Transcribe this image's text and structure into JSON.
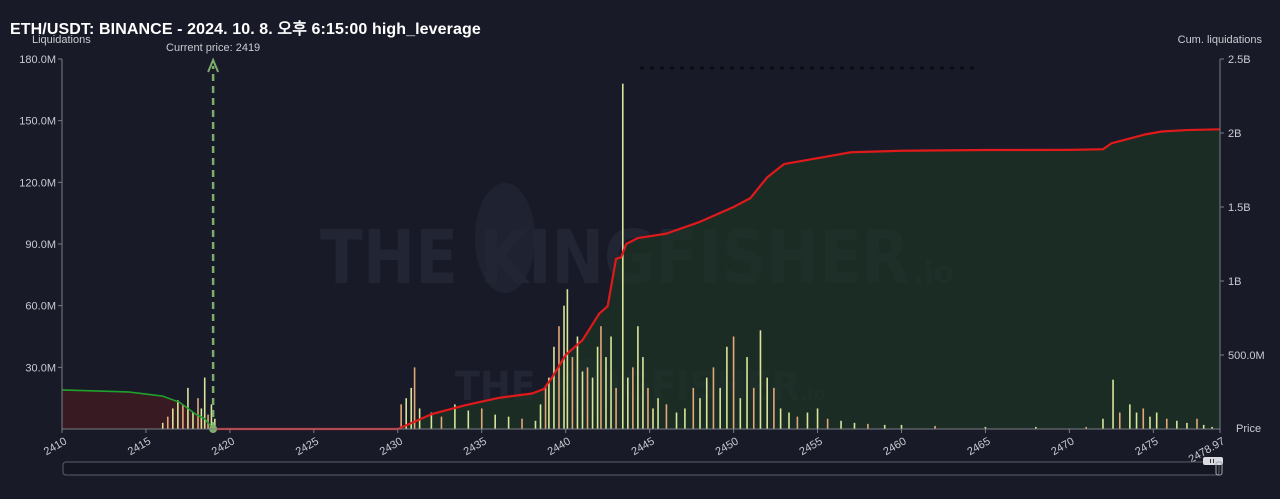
{
  "title": "ETH/USDT: BINANCE - 2024. 10. 8. 오후 6:15:00 high_leverage",
  "watermark": {
    "text": "THE KINGFISHER",
    "suffix": ".io"
  },
  "colors": {
    "background": "#181a27",
    "bars": "#d8e59a",
    "bars_orange": "#e2a878",
    "cum_line": "#e01a1a",
    "long_line": "#1fa22b",
    "long_fill": "#3a1a22",
    "cum_fill": "#1c3324",
    "current_price": "#7cae6a"
  },
  "chart_data": {
    "type": "bar",
    "title": "ETH/USDT: BINANCE - 2024. 10. 8. 오후 6:15:00 high_leverage",
    "xlabel": "Price",
    "ylabel": "Liquidations",
    "y2label": "Cum. liquidations",
    "xlim": [
      2410,
      2478.97
    ],
    "ylim": [
      0,
      180000000
    ],
    "y2lim": [
      0,
      2500000000
    ],
    "x_ticks": [
      "2410",
      "2415",
      "2420",
      "2425",
      "2430",
      "2435",
      "2440",
      "2445",
      "2450",
      "2455",
      "2460",
      "2465",
      "2470",
      "2475",
      "2478.97"
    ],
    "y_ticks": [
      "30.0M",
      "60.0M",
      "90.0M",
      "120.0M",
      "150.0M",
      "180.0M"
    ],
    "y2_ticks": [
      "500.0M",
      "1B",
      "1.5B",
      "2B",
      "2.5B"
    ],
    "current_price": {
      "label": "Current price: 2419",
      "value": 2419
    },
    "series": [
      {
        "kind": "bars",
        "points": [
          [
            2416.0,
            3.0
          ],
          [
            2416.3,
            6.0
          ],
          [
            2416.6,
            10.0
          ],
          [
            2416.9,
            14.0
          ],
          [
            2417.2,
            12.0
          ],
          [
            2417.5,
            20.0
          ],
          [
            2417.8,
            8.0
          ],
          [
            2418.1,
            15.0
          ],
          [
            2418.3,
            10.0
          ],
          [
            2418.5,
            25.0
          ],
          [
            2418.7,
            7.0
          ],
          [
            2418.9,
            12.0
          ],
          [
            2419.1,
            5.0
          ],
          [
            2430.2,
            12.0
          ],
          [
            2430.5,
            15.0
          ],
          [
            2430.8,
            20.0
          ],
          [
            2431.0,
            30.0
          ],
          [
            2431.3,
            10.0
          ],
          [
            2432.0,
            8.0
          ],
          [
            2432.6,
            6.0
          ],
          [
            2433.4,
            12.0
          ],
          [
            2434.2,
            9.0
          ],
          [
            2435.0,
            10.0
          ],
          [
            2435.8,
            7.0
          ],
          [
            2436.6,
            6.0
          ],
          [
            2437.4,
            5.0
          ],
          [
            2438.2,
            4.0
          ],
          [
            2438.5,
            12.0
          ],
          [
            2438.8,
            20.0
          ],
          [
            2439.0,
            25.0
          ],
          [
            2439.3,
            40.0
          ],
          [
            2439.6,
            50.0
          ],
          [
            2439.9,
            60.0
          ],
          [
            2440.1,
            68.0
          ],
          [
            2440.4,
            35.0
          ],
          [
            2440.7,
            45.0
          ],
          [
            2441.0,
            28.0
          ],
          [
            2441.3,
            30.0
          ],
          [
            2441.6,
            25.0
          ],
          [
            2441.9,
            40.0
          ],
          [
            2442.1,
            50.0
          ],
          [
            2442.4,
            35.0
          ],
          [
            2442.7,
            45.0
          ],
          [
            2443.0,
            20.0
          ],
          [
            2443.4,
            168.0
          ],
          [
            2443.7,
            25.0
          ],
          [
            2444.0,
            30.0
          ],
          [
            2444.3,
            50.0
          ],
          [
            2444.6,
            35.0
          ],
          [
            2444.9,
            20.0
          ],
          [
            2445.2,
            10.0
          ],
          [
            2445.5,
            15.0
          ],
          [
            2446.0,
            12.0
          ],
          [
            2446.6,
            8.0
          ],
          [
            2447.1,
            10.0
          ],
          [
            2447.6,
            20.0
          ],
          [
            2448.0,
            15.0
          ],
          [
            2448.4,
            25.0
          ],
          [
            2448.8,
            30.0
          ],
          [
            2449.2,
            20.0
          ],
          [
            2449.6,
            40.0
          ],
          [
            2450.0,
            45.0
          ],
          [
            2450.4,
            15.0
          ],
          [
            2450.8,
            35.0
          ],
          [
            2451.2,
            20.0
          ],
          [
            2451.6,
            48.0
          ],
          [
            2452.0,
            25.0
          ],
          [
            2452.4,
            20.0
          ],
          [
            2452.8,
            10.0
          ],
          [
            2453.3,
            8.0
          ],
          [
            2453.8,
            6.0
          ],
          [
            2454.4,
            8.0
          ],
          [
            2455.0,
            10.0
          ],
          [
            2455.6,
            5.0
          ],
          [
            2456.4,
            4.0
          ],
          [
            2457.2,
            3.0
          ],
          [
            2458.0,
            2.5
          ],
          [
            2459.0,
            2.0
          ],
          [
            2460.0,
            2.0
          ],
          [
            2462.0,
            1.5
          ],
          [
            2465.0,
            1.0
          ],
          [
            2468.0,
            1.0
          ],
          [
            2471.0,
            1.0
          ],
          [
            2472.0,
            5.0
          ],
          [
            2472.6,
            24.0
          ],
          [
            2473.0,
            8.0
          ],
          [
            2473.6,
            12.0
          ],
          [
            2474.0,
            8.0
          ],
          [
            2474.4,
            10.0
          ],
          [
            2474.8,
            6.0
          ],
          [
            2475.2,
            8.0
          ],
          [
            2475.8,
            5.0
          ],
          [
            2476.4,
            4.0
          ],
          [
            2477.0,
            3.0
          ],
          [
            2477.6,
            5.0
          ],
          [
            2478.0,
            2.0
          ],
          [
            2478.5,
            1.0
          ]
        ]
      },
      {
        "name": "",
        "kind": "long_line",
        "points": [
          [
            2410,
            19.0
          ],
          [
            2412,
            18.5
          ],
          [
            2414,
            18.0
          ],
          [
            2415,
            17.0
          ],
          [
            2416,
            16.0
          ],
          [
            2417,
            13.0
          ],
          [
            2418,
            7.0
          ],
          [
            2418.5,
            5.0
          ],
          [
            2419,
            0
          ]
        ]
      },
      {
        "name": "",
        "kind": "cumulative",
        "points": [
          [
            2419,
            0
          ],
          [
            2430,
            0
          ],
          [
            2432,
            100
          ],
          [
            2434,
            160
          ],
          [
            2436,
            210
          ],
          [
            2438,
            240
          ],
          [
            2438.7,
            270
          ],
          [
            2439.2,
            350
          ],
          [
            2440,
            500
          ],
          [
            2441,
            600
          ],
          [
            2442,
            780
          ],
          [
            2442.5,
            830
          ],
          [
            2443,
            1150
          ],
          [
            2443.3,
            1160
          ],
          [
            2443.6,
            1250
          ],
          [
            2444.3,
            1290
          ],
          [
            2446,
            1320
          ],
          [
            2448,
            1400
          ],
          [
            2449,
            1450
          ],
          [
            2450,
            1500
          ],
          [
            2451,
            1560
          ],
          [
            2452,
            1700
          ],
          [
            2453,
            1790
          ],
          [
            2455,
            1830
          ],
          [
            2457,
            1870
          ],
          [
            2460,
            1880
          ],
          [
            2465,
            1885
          ],
          [
            2470,
            1886
          ],
          [
            2472,
            1890
          ],
          [
            2472.5,
            1930
          ],
          [
            2473.5,
            1960
          ],
          [
            2474.5,
            1990
          ],
          [
            2475.5,
            2010
          ],
          [
            2477,
            2020
          ],
          [
            2478.97,
            2025
          ]
        ]
      }
    ]
  }
}
